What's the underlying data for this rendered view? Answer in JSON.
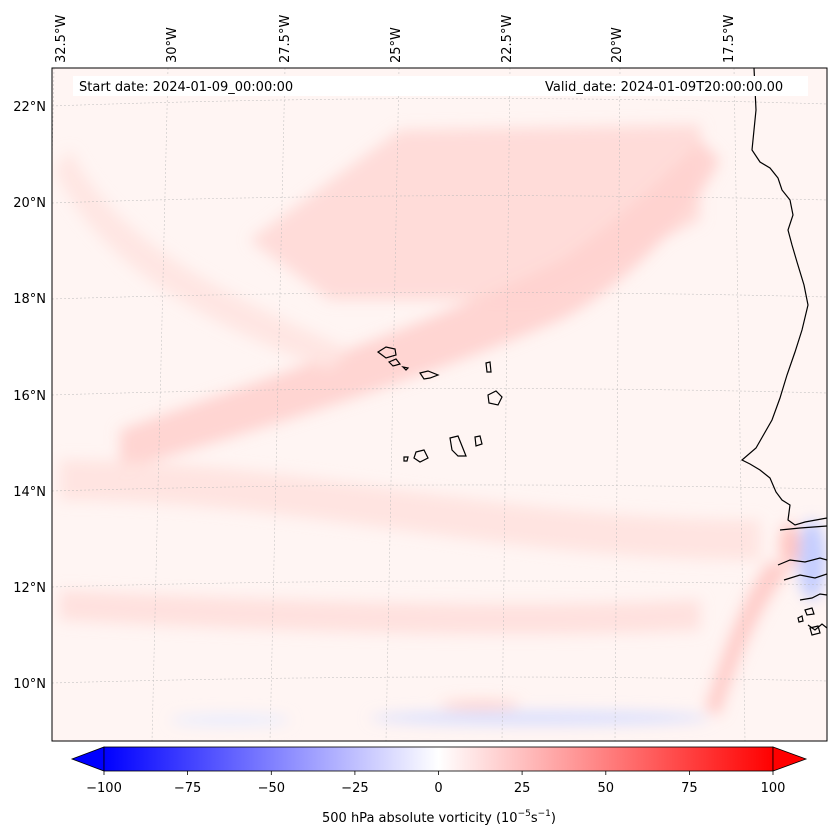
{
  "map": {
    "header": {
      "start_date": "Start date: 2024-01-09_00:00:00",
      "valid_date": "Valid_date: 2024-01-09T20:00:00.00"
    },
    "longitude_labels": [
      "32.5°W",
      "30°W",
      "27.5°W",
      "25°W",
      "22.5°W",
      "20°W",
      "17.5°W"
    ],
    "latitude_labels": [
      "22°N",
      "20°N",
      "18°N",
      "16°N",
      "14°N",
      "12°N",
      "10°N"
    ],
    "gridlines": true,
    "field": "500 hPa absolute vorticity",
    "colormap": "bwr",
    "features": [
      "Cabo Verde islands",
      "West African coastline (Mauritania, Senegal, Gambia, Guinea-Bissau, Guinea)"
    ]
  },
  "colorbar": {
    "label_prefix": "500 hPa absolute vorticity (10",
    "label_exp1": "−5",
    "label_mid": "s",
    "label_exp2": "−1",
    "label_suffix": ")",
    "range": [
      -100,
      100
    ],
    "extend": "both",
    "ticks": [
      "−100",
      "−75",
      "−50",
      "−25",
      "0",
      "25",
      "50",
      "75",
      "100"
    ],
    "colors": {
      "min": "#0000ff",
      "mid": "#ffffff",
      "max": "#ff0000"
    }
  }
}
